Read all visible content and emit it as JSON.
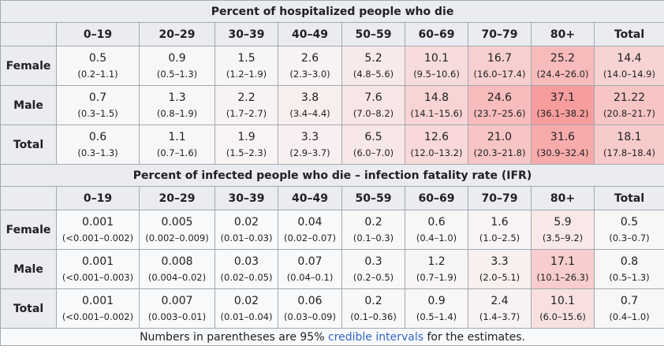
{
  "columns": [
    "0–19",
    "20–29",
    "30–39",
    "40–49",
    "50–59",
    "60–69",
    "70–79",
    "80+",
    "Total"
  ],
  "sections": [
    {
      "title": "Percent of hospitalized people who die",
      "rows": [
        {
          "label": "Female",
          "cells": [
            {
              "value": "0.5",
              "ci": "(0.2–1.1)",
              "color": "#f8f7f7"
            },
            {
              "value": "0.9",
              "ci": "(0.5–1.3)",
              "color": "#f8f7f7"
            },
            {
              "value": "1.5",
              "ci": "(1.2–1.9)",
              "color": "#f8f5f5"
            },
            {
              "value": "2.6",
              "ci": "(2.3–3.0)",
              "color": "#f8f2f2"
            },
            {
              "value": "5.2",
              "ci": "(4.8–5.6)",
              "color": "#f8eaea"
            },
            {
              "value": "10.1",
              "ci": "(9.5–10.6)",
              "color": "#f8dcdc"
            },
            {
              "value": "16.7",
              "ci": "(16.0–17.4)",
              "color": "#f8cfcf"
            },
            {
              "value": "25.2",
              "ci": "(24.4–26.0)",
              "color": "#f8bbbb"
            },
            {
              "value": "14.4",
              "ci": "(14.0–14.9)",
              "color": "#f8d3d3"
            }
          ]
        },
        {
          "label": "Male",
          "cells": [
            {
              "value": "0.7",
              "ci": "(0.3–1.5)",
              "color": "#f8f7f7"
            },
            {
              "value": "1.3",
              "ci": "(0.8–1.9)",
              "color": "#f8f6f6"
            },
            {
              "value": "2.2",
              "ci": "(1.7–2.7)",
              "color": "#f8f3f3"
            },
            {
              "value": "3.8",
              "ci": "(3.4–4.4)",
              "color": "#f8eeee"
            },
            {
              "value": "7.6",
              "ci": "(7.0–8.2)",
              "color": "#f8e5e5"
            },
            {
              "value": "14.8",
              "ci": "(14.1–15.6)",
              "color": "#f8d4d4"
            },
            {
              "value": "24.6",
              "ci": "(23.7–25.6)",
              "color": "#f8bcbc"
            },
            {
              "value": "37.1",
              "ci": "(36.1–38.2)",
              "color": "#f89d9d"
            },
            {
              "value": "21.22",
              "ci": "(20.8–21.7)",
              "color": "#f8c5c5"
            }
          ]
        },
        {
          "label": "Total",
          "cells": [
            {
              "value": "0.6",
              "ci": "(0.3–1.3)",
              "color": "#f8f7f7"
            },
            {
              "value": "1.1",
              "ci": "(0.7–1.6)",
              "color": "#f8f6f6"
            },
            {
              "value": "1.9",
              "ci": "(1.5–2.3)",
              "color": "#f8f4f4"
            },
            {
              "value": "3.3",
              "ci": "(2.9–3.7)",
              "color": "#f8f0f0"
            },
            {
              "value": "6.5",
              "ci": "(6.0–7.0)",
              "color": "#f8e7e7"
            },
            {
              "value": "12.6",
              "ci": "(12.0–13.2)",
              "color": "#f8d8d8"
            },
            {
              "value": "21.0",
              "ci": "(20.3–21.8)",
              "color": "#f8c5c5"
            },
            {
              "value": "31.6",
              "ci": "(30.9–32.4)",
              "color": "#f8abab"
            },
            {
              "value": "18.1",
              "ci": "(17.8–18.4)",
              "color": "#f8cbcb"
            }
          ]
        }
      ]
    },
    {
      "title": "Percent of infected people who die – infection fatality rate (IFR)",
      "rows": [
        {
          "label": "Female",
          "cells": [
            {
              "value": "0.001",
              "ci": "(<0.001–0.002)",
              "color": "#f8f9fa"
            },
            {
              "value": "0.005",
              "ci": "(0.002–0.009)",
              "color": "#f8f9fa"
            },
            {
              "value": "0.02",
              "ci": "(0.01–0.03)",
              "color": "#f8f9fa"
            },
            {
              "value": "0.04",
              "ci": "(0.02–0.07)",
              "color": "#f8f9fa"
            },
            {
              "value": "0.2",
              "ci": "(0.1–0.3)",
              "color": "#f8f8f8"
            },
            {
              "value": "0.6",
              "ci": "(0.4–1.0)",
              "color": "#f8f7f7"
            },
            {
              "value": "1.6",
              "ci": "(1.0–2.5)",
              "color": "#f8f4f4"
            },
            {
              "value": "5.9",
              "ci": "(3.5–9.2)",
              "color": "#f8e8e8"
            },
            {
              "value": "0.5",
              "ci": "(0.3–0.7)",
              "color": "#f8f7f7"
            }
          ]
        },
        {
          "label": "Male",
          "cells": [
            {
              "value": "0.001",
              "ci": "(<0.001–0.003)",
              "color": "#f8f9fa"
            },
            {
              "value": "0.008",
              "ci": "(0.004–0.02)",
              "color": "#f8f9fa"
            },
            {
              "value": "0.03",
              "ci": "(0.02–0.05)",
              "color": "#f8f9fa"
            },
            {
              "value": "0.07",
              "ci": "(0.04–0.1)",
              "color": "#f8f9fa"
            },
            {
              "value": "0.3",
              "ci": "(0.2–0.5)",
              "color": "#f8f8f8"
            },
            {
              "value": "1.2",
              "ci": "(0.7–1.9)",
              "color": "#f8f5f5"
            },
            {
              "value": "3.3",
              "ci": "(2.0–5.1)",
              "color": "#f8efef"
            },
            {
              "value": "17.1",
              "ci": "(10.1–26.3)",
              "color": "#f8cdcd"
            },
            {
              "value": "0.8",
              "ci": "(0.5–1.3)",
              "color": "#f8f6f6"
            }
          ]
        },
        {
          "label": "Total",
          "cells": [
            {
              "value": "0.001",
              "ci": "(<0.001–0.002)",
              "color": "#f8f9fa"
            },
            {
              "value": "0.007",
              "ci": "(0.003–0.01)",
              "color": "#f8f9fa"
            },
            {
              "value": "0.02",
              "ci": "(0.01–0.04)",
              "color": "#f8f9fa"
            },
            {
              "value": "0.06",
              "ci": "(0.03–0.09)",
              "color": "#f8f9fa"
            },
            {
              "value": "0.2",
              "ci": "(0.1–0.36)",
              "color": "#f8f8f8"
            },
            {
              "value": "0.9",
              "ci": "(0.5–1.4)",
              "color": "#f8f6f6"
            },
            {
              "value": "2.4",
              "ci": "(1.4–3.7)",
              "color": "#f8f2f2"
            },
            {
              "value": "10.1",
              "ci": "(6.0–15.6)",
              "color": "#f8e0e0"
            },
            {
              "value": "0.7",
              "ci": "(0.4–1.0)",
              "color": "#f8f7f7"
            }
          ]
        }
      ]
    }
  ],
  "footnote": {
    "prefix": "Numbers in parentheses are 95% ",
    "link": "credible intervals",
    "suffix": " for the estimates."
  }
}
